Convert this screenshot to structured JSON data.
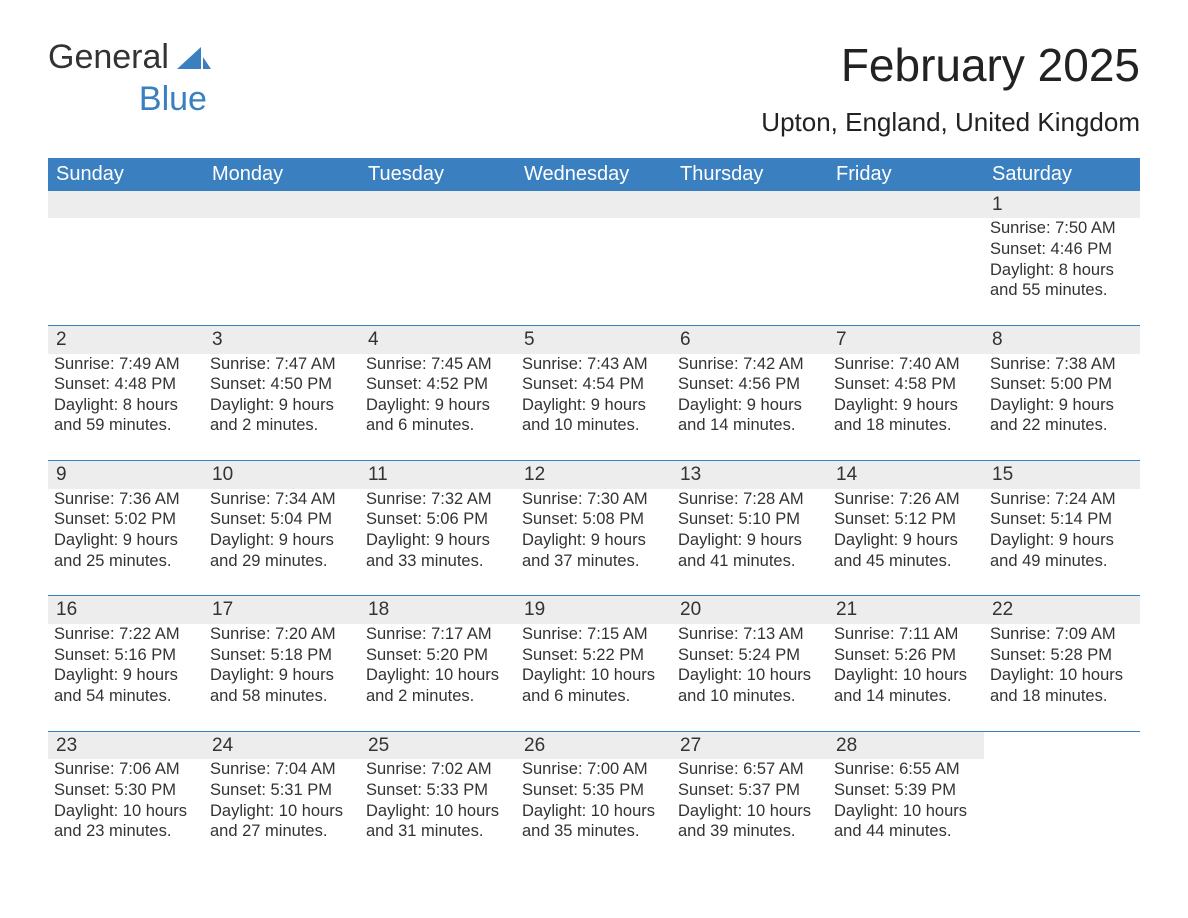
{
  "logo": {
    "text_general": "General",
    "text_blue": "Blue"
  },
  "title": "February 2025",
  "location": "Upton, England, United Kingdom",
  "colors": {
    "accent": "#3a7fbf",
    "header_text": "#ffffff",
    "daynum_bg": "#ededed",
    "body_text": "#333333",
    "page_bg": "#ffffff"
  },
  "font": {
    "family": "Segoe UI, Arial, sans-serif",
    "title_size_pt": 34,
    "body_size_pt": 12
  },
  "layout": {
    "columns": 7,
    "weeks": 5,
    "start_day_index": 6
  },
  "weekdays": [
    "Sunday",
    "Monday",
    "Tuesday",
    "Wednesday",
    "Thursday",
    "Friday",
    "Saturday"
  ],
  "weeks": [
    [
      null,
      null,
      null,
      null,
      null,
      null,
      {
        "day": "1",
        "sunrise": "Sunrise: 7:50 AM",
        "sunset": "Sunset: 4:46 PM",
        "daylight1": "Daylight: 8 hours",
        "daylight2": "and 55 minutes."
      }
    ],
    [
      {
        "day": "2",
        "sunrise": "Sunrise: 7:49 AM",
        "sunset": "Sunset: 4:48 PM",
        "daylight1": "Daylight: 8 hours",
        "daylight2": "and 59 minutes."
      },
      {
        "day": "3",
        "sunrise": "Sunrise: 7:47 AM",
        "sunset": "Sunset: 4:50 PM",
        "daylight1": "Daylight: 9 hours",
        "daylight2": "and 2 minutes."
      },
      {
        "day": "4",
        "sunrise": "Sunrise: 7:45 AM",
        "sunset": "Sunset: 4:52 PM",
        "daylight1": "Daylight: 9 hours",
        "daylight2": "and 6 minutes."
      },
      {
        "day": "5",
        "sunrise": "Sunrise: 7:43 AM",
        "sunset": "Sunset: 4:54 PM",
        "daylight1": "Daylight: 9 hours",
        "daylight2": "and 10 minutes."
      },
      {
        "day": "6",
        "sunrise": "Sunrise: 7:42 AM",
        "sunset": "Sunset: 4:56 PM",
        "daylight1": "Daylight: 9 hours",
        "daylight2": "and 14 minutes."
      },
      {
        "day": "7",
        "sunrise": "Sunrise: 7:40 AM",
        "sunset": "Sunset: 4:58 PM",
        "daylight1": "Daylight: 9 hours",
        "daylight2": "and 18 minutes."
      },
      {
        "day": "8",
        "sunrise": "Sunrise: 7:38 AM",
        "sunset": "Sunset: 5:00 PM",
        "daylight1": "Daylight: 9 hours",
        "daylight2": "and 22 minutes."
      }
    ],
    [
      {
        "day": "9",
        "sunrise": "Sunrise: 7:36 AM",
        "sunset": "Sunset: 5:02 PM",
        "daylight1": "Daylight: 9 hours",
        "daylight2": "and 25 minutes."
      },
      {
        "day": "10",
        "sunrise": "Sunrise: 7:34 AM",
        "sunset": "Sunset: 5:04 PM",
        "daylight1": "Daylight: 9 hours",
        "daylight2": "and 29 minutes."
      },
      {
        "day": "11",
        "sunrise": "Sunrise: 7:32 AM",
        "sunset": "Sunset: 5:06 PM",
        "daylight1": "Daylight: 9 hours",
        "daylight2": "and 33 minutes."
      },
      {
        "day": "12",
        "sunrise": "Sunrise: 7:30 AM",
        "sunset": "Sunset: 5:08 PM",
        "daylight1": "Daylight: 9 hours",
        "daylight2": "and 37 minutes."
      },
      {
        "day": "13",
        "sunrise": "Sunrise: 7:28 AM",
        "sunset": "Sunset: 5:10 PM",
        "daylight1": "Daylight: 9 hours",
        "daylight2": "and 41 minutes."
      },
      {
        "day": "14",
        "sunrise": "Sunrise: 7:26 AM",
        "sunset": "Sunset: 5:12 PM",
        "daylight1": "Daylight: 9 hours",
        "daylight2": "and 45 minutes."
      },
      {
        "day": "15",
        "sunrise": "Sunrise: 7:24 AM",
        "sunset": "Sunset: 5:14 PM",
        "daylight1": "Daylight: 9 hours",
        "daylight2": "and 49 minutes."
      }
    ],
    [
      {
        "day": "16",
        "sunrise": "Sunrise: 7:22 AM",
        "sunset": "Sunset: 5:16 PM",
        "daylight1": "Daylight: 9 hours",
        "daylight2": "and 54 minutes."
      },
      {
        "day": "17",
        "sunrise": "Sunrise: 7:20 AM",
        "sunset": "Sunset: 5:18 PM",
        "daylight1": "Daylight: 9 hours",
        "daylight2": "and 58 minutes."
      },
      {
        "day": "18",
        "sunrise": "Sunrise: 7:17 AM",
        "sunset": "Sunset: 5:20 PM",
        "daylight1": "Daylight: 10 hours",
        "daylight2": "and 2 minutes."
      },
      {
        "day": "19",
        "sunrise": "Sunrise: 7:15 AM",
        "sunset": "Sunset: 5:22 PM",
        "daylight1": "Daylight: 10 hours",
        "daylight2": "and 6 minutes."
      },
      {
        "day": "20",
        "sunrise": "Sunrise: 7:13 AM",
        "sunset": "Sunset: 5:24 PM",
        "daylight1": "Daylight: 10 hours",
        "daylight2": "and 10 minutes."
      },
      {
        "day": "21",
        "sunrise": "Sunrise: 7:11 AM",
        "sunset": "Sunset: 5:26 PM",
        "daylight1": "Daylight: 10 hours",
        "daylight2": "and 14 minutes."
      },
      {
        "day": "22",
        "sunrise": "Sunrise: 7:09 AM",
        "sunset": "Sunset: 5:28 PM",
        "daylight1": "Daylight: 10 hours",
        "daylight2": "and 18 minutes."
      }
    ],
    [
      {
        "day": "23",
        "sunrise": "Sunrise: 7:06 AM",
        "sunset": "Sunset: 5:30 PM",
        "daylight1": "Daylight: 10 hours",
        "daylight2": "and 23 minutes."
      },
      {
        "day": "24",
        "sunrise": "Sunrise: 7:04 AM",
        "sunset": "Sunset: 5:31 PM",
        "daylight1": "Daylight: 10 hours",
        "daylight2": "and 27 minutes."
      },
      {
        "day": "25",
        "sunrise": "Sunrise: 7:02 AM",
        "sunset": "Sunset: 5:33 PM",
        "daylight1": "Daylight: 10 hours",
        "daylight2": "and 31 minutes."
      },
      {
        "day": "26",
        "sunrise": "Sunrise: 7:00 AM",
        "sunset": "Sunset: 5:35 PM",
        "daylight1": "Daylight: 10 hours",
        "daylight2": "and 35 minutes."
      },
      {
        "day": "27",
        "sunrise": "Sunrise: 6:57 AM",
        "sunset": "Sunset: 5:37 PM",
        "daylight1": "Daylight: 10 hours",
        "daylight2": "and 39 minutes."
      },
      {
        "day": "28",
        "sunrise": "Sunrise: 6:55 AM",
        "sunset": "Sunset: 5:39 PM",
        "daylight1": "Daylight: 10 hours",
        "daylight2": "and 44 minutes."
      },
      null
    ]
  ]
}
